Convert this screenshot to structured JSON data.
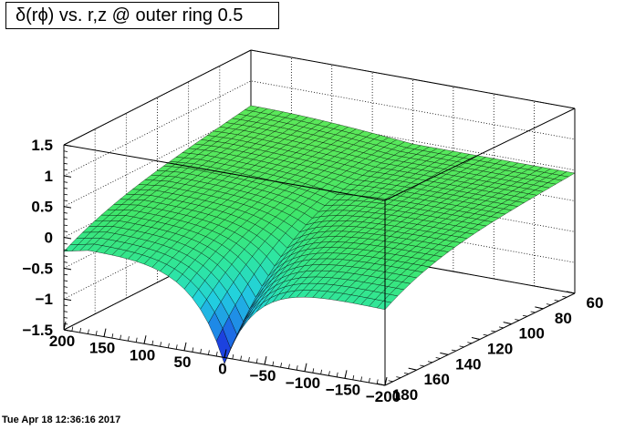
{
  "title": "δ(rϕ) vs. r,z @ outer ring 0.5",
  "timestamp": "Tue Apr 18 12:36:16 2017",
  "chart_data": {
    "type": "surface",
    "x_axis": {
      "range": [
        -200,
        200
      ],
      "tick_values": [
        200,
        150,
        100,
        50,
        0,
        -50,
        -100,
        -150,
        -200
      ],
      "tick_labels": [
        "200",
        "150",
        "100",
        "50",
        "0",
        "−50",
        "−100",
        "−150",
        "−200"
      ]
    },
    "y_axis": {
      "range": [
        60,
        180
      ],
      "tick_values": [
        60,
        80,
        100,
        120,
        140,
        160,
        180
      ],
      "tick_labels": [
        "60",
        "80",
        "100",
        "120",
        "140",
        "160",
        "180"
      ]
    },
    "z_axis": {
      "range": [
        -1.5,
        1.5
      ],
      "tick_values": [
        1.5,
        1,
        0.5,
        0,
        -0.5,
        -1,
        -1.5
      ],
      "tick_labels": [
        "1.5",
        "1",
        "0.5",
        "0",
        "−0.5",
        "−1",
        "−1.5"
      ]
    },
    "grid": true,
    "palette": [
      "#1a1ad9",
      "#1e7fe8",
      "#22d0e0",
      "#2ee6a0",
      "#3ee66b",
      "#5ae85a"
    ],
    "surface": {
      "description_values": {
        "z_at_far_edge_r60": 0.45,
        "z_min_near_z0_r180": -1.5,
        "z_at_z200_r180": 0.0,
        "z_at_zminus200_r180": -0.2
      }
    }
  }
}
